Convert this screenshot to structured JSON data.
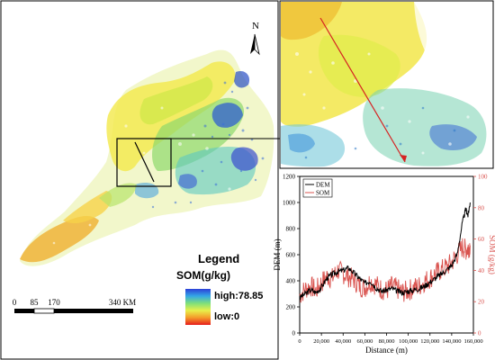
{
  "map": {
    "north_label": "N",
    "legend": {
      "title": "Legend",
      "variable": "SOM(g/kg)",
      "high_label": "high:78.85",
      "low_label": "low:0"
    },
    "scalebar": {
      "ticks": [
        "0",
        "85",
        "170",
        "340 KM"
      ]
    }
  },
  "chart_data": {
    "type": "line",
    "title": "",
    "xlabel": "Distance (m)",
    "ylabel_left": "DEM (m)",
    "ylabel_right": "SOM (g/kg)",
    "xlim": [
      0,
      160000
    ],
    "ylim_left": [
      0,
      1200
    ],
    "ylim_right": [
      0,
      100
    ],
    "x_ticks": [
      0,
      20000,
      40000,
      60000,
      80000,
      100000,
      120000,
      140000,
      160000
    ],
    "x_tick_labels": [
      "0",
      "20,000",
      "40,000",
      "60,000",
      "80,000",
      "100,000",
      "120,000",
      "140,000",
      "160,000"
    ],
    "y_left_ticks": [
      0,
      200,
      400,
      600,
      800,
      1000,
      1200
    ],
    "y_right_ticks": [
      0,
      20,
      40,
      60,
      80,
      100
    ],
    "legend_position": "top-left",
    "series": [
      {
        "name": "DEM",
        "color": "#000000",
        "axis": "left",
        "x": [
          0,
          5000,
          10000,
          15000,
          20000,
          25000,
          30000,
          35000,
          40000,
          45000,
          50000,
          55000,
          60000,
          65000,
          70000,
          75000,
          80000,
          85000,
          90000,
          95000,
          100000,
          105000,
          110000,
          115000,
          120000,
          125000,
          130000,
          135000,
          140000,
          145000,
          150000,
          153000,
          155000,
          157000
        ],
        "values": [
          270,
          300,
          330,
          310,
          350,
          420,
          450,
          470,
          480,
          500,
          460,
          420,
          380,
          400,
          350,
          320,
          330,
          340,
          320,
          310,
          320,
          330,
          340,
          360,
          390,
          420,
          450,
          480,
          520,
          600,
          850,
          950,
          900,
          1000
        ]
      },
      {
        "name": "SOM",
        "color": "#d9534f",
        "axis": "right",
        "x": [
          0,
          5000,
          10000,
          15000,
          20000,
          25000,
          30000,
          35000,
          40000,
          45000,
          50000,
          55000,
          60000,
          65000,
          70000,
          75000,
          80000,
          85000,
          90000,
          95000,
          100000,
          105000,
          110000,
          115000,
          120000,
          125000,
          130000,
          135000,
          140000,
          145000,
          150000,
          153000,
          155000,
          157000
        ],
        "values": [
          24,
          28,
          30,
          27,
          32,
          36,
          35,
          40,
          38,
          36,
          34,
          30,
          29,
          33,
          31,
          28,
          27,
          30,
          28,
          26,
          27,
          29,
          30,
          33,
          35,
          38,
          40,
          42,
          45,
          50,
          55,
          53,
          54,
          56
        ]
      }
    ]
  }
}
